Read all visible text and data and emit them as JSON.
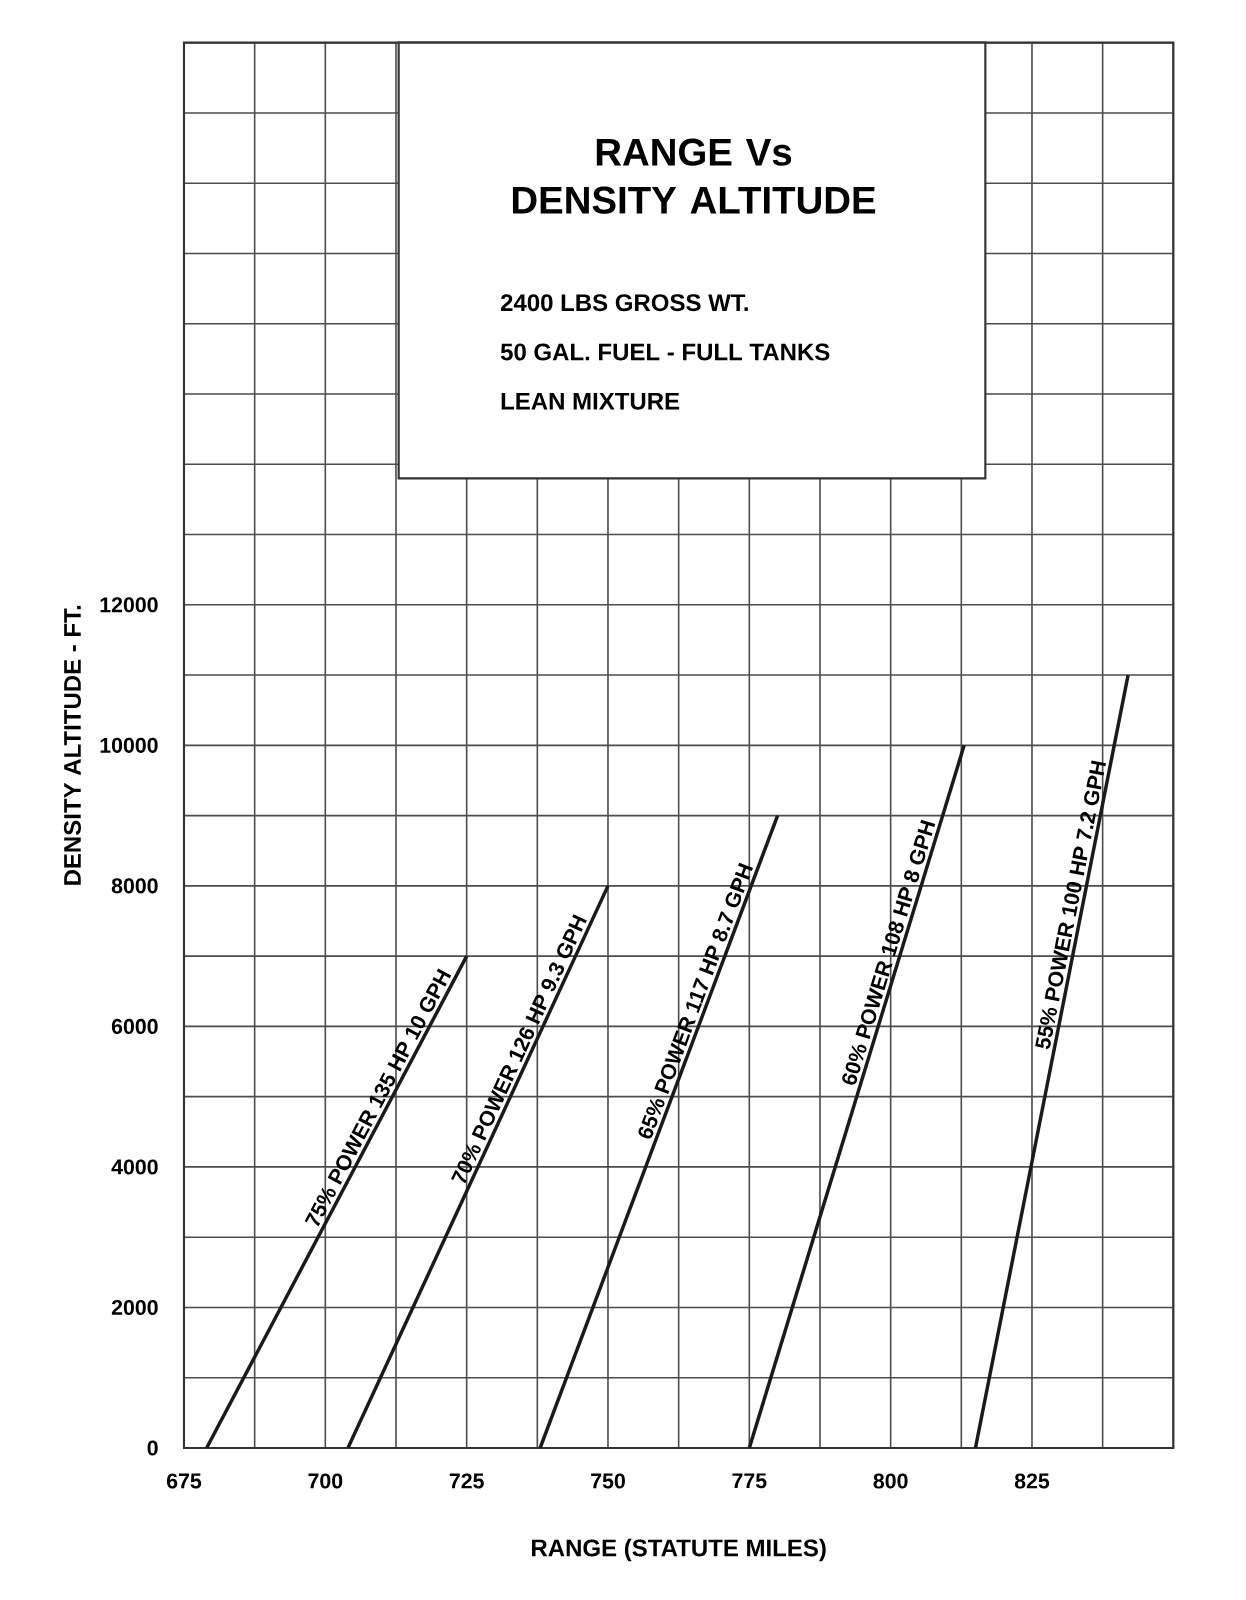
{
  "chart_data": {
    "type": "line",
    "title": "RANGE Vs DENSITY ALTITUDE",
    "annotations": [
      "2400 LBS GROSS WT.",
      "50 GAL. FUEL - FULL TANKS",
      "LEAN MIXTURE"
    ],
    "xlabel": "RANGE (STATUTE MILES)",
    "ylabel": "DENSITY ALTITUDE - FT.",
    "xlim": [
      675,
      850
    ],
    "ylim": [
      0,
      20000
    ],
    "xticks": [
      675,
      {
        "value": 687.5,
        "label": null
      },
      700,
      {
        "value": 712.5,
        "label": null
      },
      725,
      {
        "value": 737.5,
        "label": null
      },
      750,
      {
        "value": 762.5,
        "label": null
      },
      775,
      {
        "value": 787.5,
        "label": null
      },
      800,
      {
        "value": 812.5,
        "label": null
      },
      825,
      {
        "value": 837.5,
        "label": null
      },
      {
        "value": 850,
        "label": null
      }
    ],
    "yticks": [
      0,
      {
        "value": 1000,
        "label": null
      },
      2000,
      {
        "value": 3000,
        "label": null
      },
      4000,
      {
        "value": 5000,
        "label": null
      },
      6000,
      {
        "value": 7000,
        "label": null
      },
      8000,
      {
        "value": 9000,
        "label": null
      },
      10000,
      {
        "value": 11000,
        "label": null
      },
      12000,
      {
        "value": 13000,
        "label": null
      },
      {
        "value": 14000,
        "label": null
      },
      {
        "value": 15000,
        "label": null
      },
      {
        "value": 16000,
        "label": null
      },
      {
        "value": 17000,
        "label": null
      },
      {
        "value": 18000,
        "label": null
      },
      {
        "value": 19000,
        "label": null
      },
      {
        "value": 20000,
        "label": null
      }
    ],
    "grid": true,
    "series": [
      {
        "name": "75% POWER 135 HP 10 GPH",
        "color": "#1a1a1a",
        "x": [
          679,
          725
        ],
        "values": [
          0,
          7000
        ]
      },
      {
        "name": "70% POWER 126 HP 9.3 GPH",
        "color": "#1a1a1a",
        "x": [
          704,
          750
        ],
        "values": [
          0,
          8000
        ]
      },
      {
        "name": "65% POWER 117 HP 8.7 GPH",
        "color": "#1a1a1a",
        "x": [
          738,
          780
        ],
        "values": [
          0,
          9000
        ]
      },
      {
        "name": "60% POWER 108 HP 8 GPH",
        "color": "#1a1a1a",
        "x": [
          775,
          813
        ],
        "values": [
          0,
          10000
        ]
      },
      {
        "name": "55% POWER 100 HP 7.2 GPH",
        "color": "#1a1a1a",
        "x": [
          815,
          842
        ],
        "values": [
          0,
          11000
        ]
      }
    ]
  }
}
